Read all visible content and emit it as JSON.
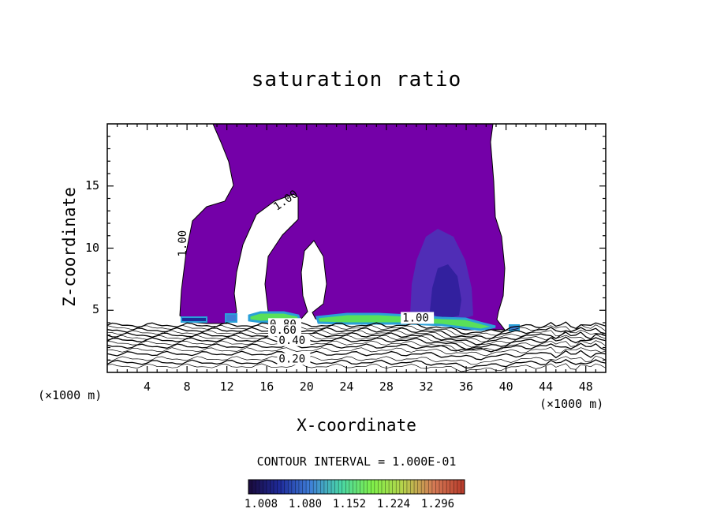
{
  "chart_data": {
    "type": "heatmap",
    "title": "saturation ratio",
    "xlabel": "X-coordinate",
    "ylabel": "Z-coordinate",
    "x_unit": "(×1000 m)",
    "xlim": [
      0,
      50
    ],
    "ylim": [
      0,
      20
    ],
    "x_ticks": [
      4,
      8,
      12,
      16,
      20,
      24,
      28,
      32,
      36,
      40,
      44,
      48
    ],
    "y_ticks": [
      5,
      10,
      15
    ],
    "contour_labels": [
      {
        "text": "1.00",
        "x": 17,
        "y": 13
      },
      {
        "text": "1.00",
        "x": 7.9,
        "y": 9.3
      },
      {
        "text": "1.00",
        "x": 29.6,
        "y": 4.1
      },
      {
        "text": "0.80",
        "x": 16.3,
        "y": 3.6
      },
      {
        "text": "0.60",
        "x": 16.3,
        "y": 3.1
      },
      {
        "text": "0.40",
        "x": 17.2,
        "y": 2.3
      },
      {
        "text": "0.20",
        "x": 17.2,
        "y": 0.8
      }
    ],
    "contour_interval": "CONTOUR INTERVAL = 1.000E-01",
    "colorbar": {
      "ticks": [
        "1.008",
        "1.080",
        "1.152",
        "1.224",
        "1.296"
      ],
      "colors": [
        "#1a0a3a",
        "#1e2a9a",
        "#3f7fd8",
        "#49d6a6",
        "#7ff04a",
        "#b6d34c",
        "#d47a55",
        "#b83a2a"
      ]
    },
    "colors": {
      "supersaturated_fill": "#7400a8",
      "core_fill": "#4a35b8",
      "base_band": "#59e05a",
      "base_edge": "#2aa0d8"
    }
  }
}
